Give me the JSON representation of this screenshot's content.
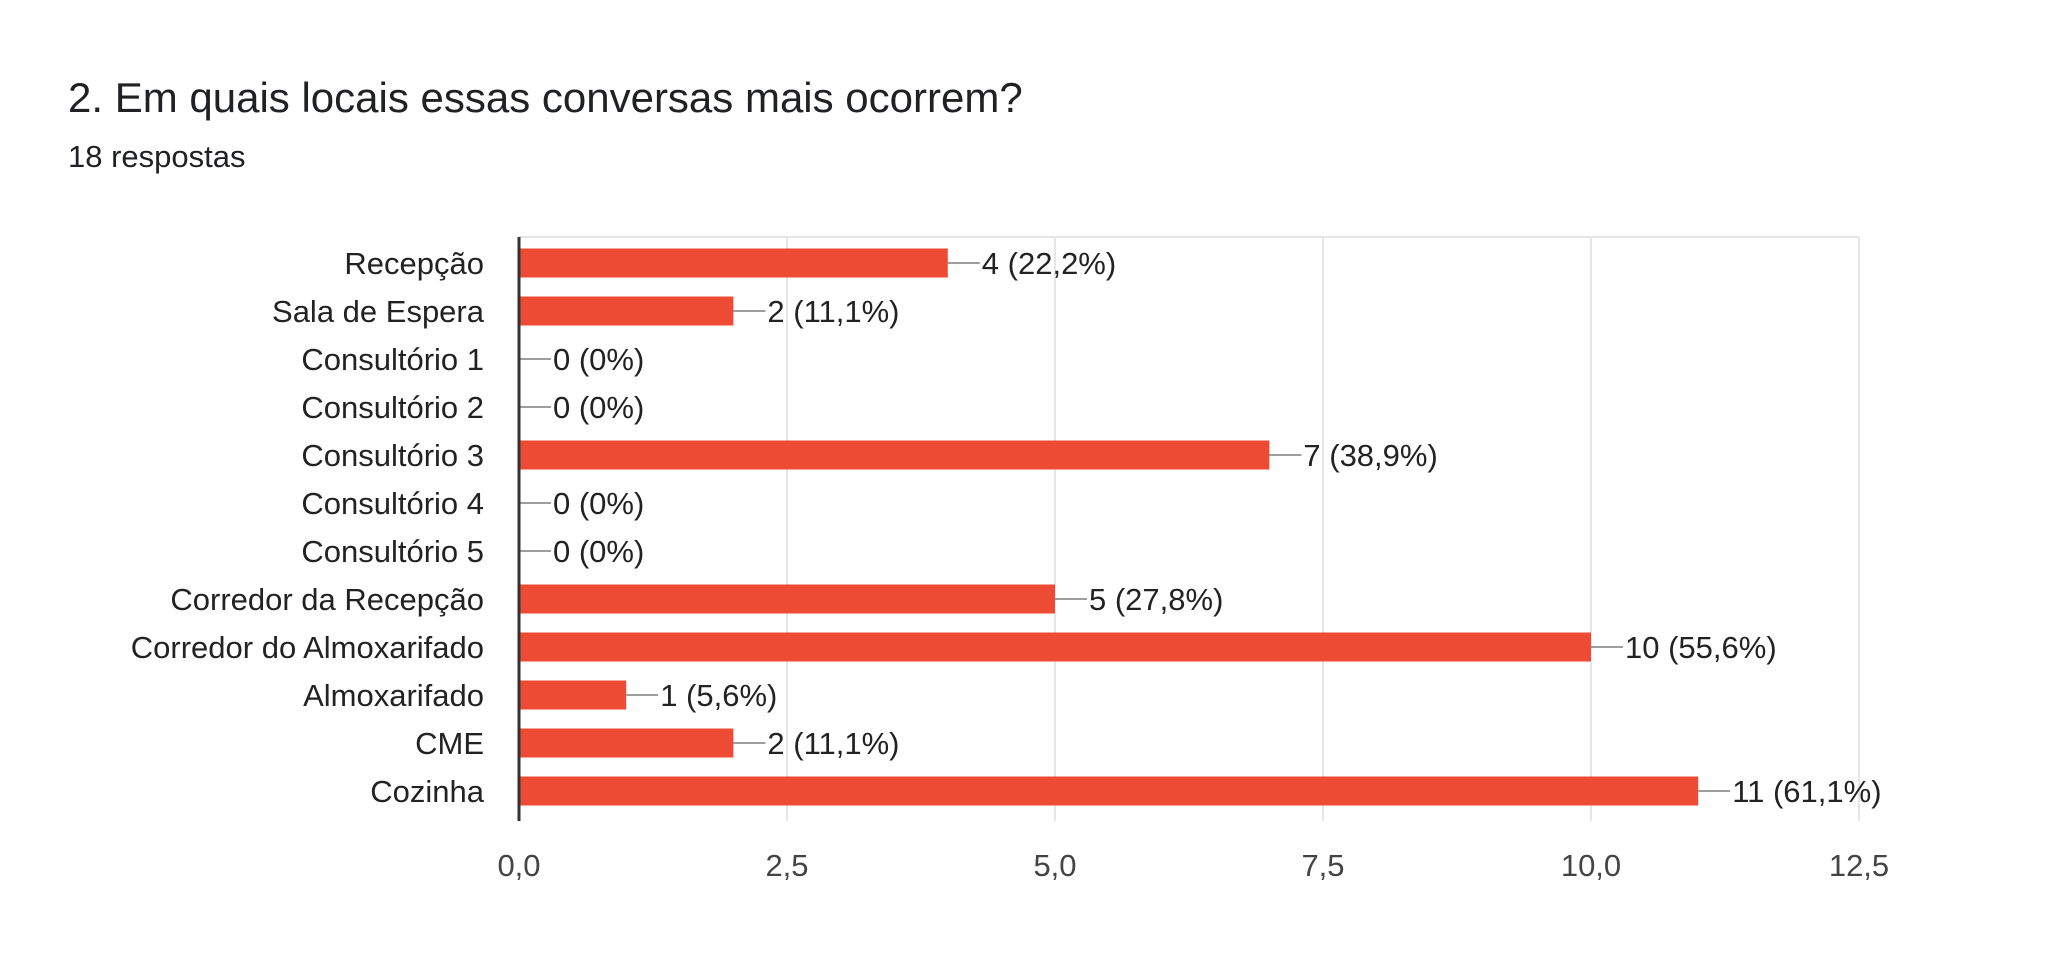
{
  "question": {
    "title": "2. Em quais locais essas conversas mais ocorrem?",
    "responses": "18 respostas"
  },
  "chart_data": {
    "type": "bar",
    "orientation": "horizontal",
    "categories": [
      "Recepção",
      "Sala de Espera",
      "Consultório 1",
      "Consultório 2",
      "Consultório 3",
      "Consultório 4",
      "Consultório 5",
      "Corredor da Recepção",
      "Corredor do Almoxarifado",
      "Almoxarifado",
      "CME",
      "Cozinha"
    ],
    "values": [
      4,
      2,
      0,
      0,
      7,
      0,
      0,
      5,
      10,
      1,
      2,
      11
    ],
    "data_labels": [
      "4 (22,2%)",
      "2 (11,1%)",
      "0 (0%)",
      "0 (0%)",
      "7 (38,9%)",
      "0 (0%)",
      "0 (0%)",
      "5 (27,8%)",
      "10 (55,6%)",
      "1 (5,6%)",
      "2 (11,1%)",
      "11 (61,1%)"
    ],
    "xlim": [
      0,
      12.5
    ],
    "x_ticks": [
      0,
      2.5,
      5,
      7.5,
      10,
      12.5
    ],
    "x_tick_labels": [
      "0,0",
      "2,5",
      "5,0",
      "7,5",
      "10,0",
      "12,5"
    ],
    "grid": true,
    "legend": "none",
    "colors": {
      "bar": "#ee4b35",
      "grid": "#e6e6e6",
      "axis": "#333333",
      "leader": "#9e9e9e"
    }
  }
}
